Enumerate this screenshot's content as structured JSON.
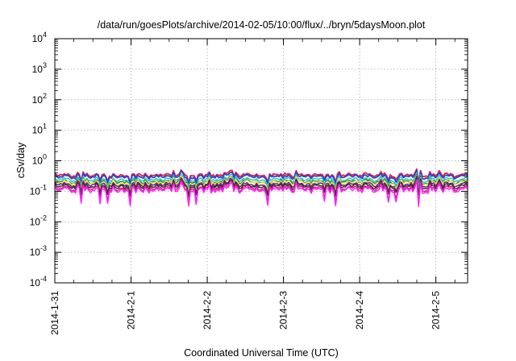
{
  "chart_data": {
    "type": "line",
    "title": "/data/run/goesPlots/archive/2014-02-05/10:00/flux/../bryn/5daysMoon.plot",
    "xlabel": "Coordinated Universal Time (UTC)",
    "ylabel": "cSv/day",
    "yscale": "log",
    "ylim": [
      0.0001,
      10000
    ],
    "xlim": [
      "2014-01-31",
      "2014-02-05T10:00"
    ],
    "x_ticks": [
      "2014-1-31",
      "2014-2-1",
      "2014-2-2",
      "2014-2-3",
      "2014-2-4",
      "2014-2-5"
    ],
    "y_ticks": [
      {
        "base": "10",
        "exp": "-4"
      },
      {
        "base": "10",
        "exp": "-3"
      },
      {
        "base": "10",
        "exp": "-2"
      },
      {
        "base": "10",
        "exp": "-1"
      },
      {
        "base": "10",
        "exp": "0"
      },
      {
        "base": "10",
        "exp": "1"
      },
      {
        "base": "10",
        "exp": "2"
      },
      {
        "base": "10",
        "exp": "3"
      },
      {
        "base": "10",
        "exp": "4"
      }
    ],
    "grid": true,
    "series": [
      {
        "color": "#e8203a",
        "level": 0.34
      },
      {
        "color": "#2e3fd6",
        "level": 0.3
      },
      {
        "color": "#25c7d4",
        "level": 0.24
      },
      {
        "color": "#1f8f35",
        "level": 0.205
      },
      {
        "color": "#f2e640",
        "level": 0.19
      },
      {
        "color": "#6a1f8a",
        "level": 0.165
      },
      {
        "color": "#333333",
        "level": 0.145
      },
      {
        "color": "#e0168a",
        "level": 0.125
      },
      {
        "color": "#ff22ff",
        "level": 0.11
      }
    ]
  }
}
